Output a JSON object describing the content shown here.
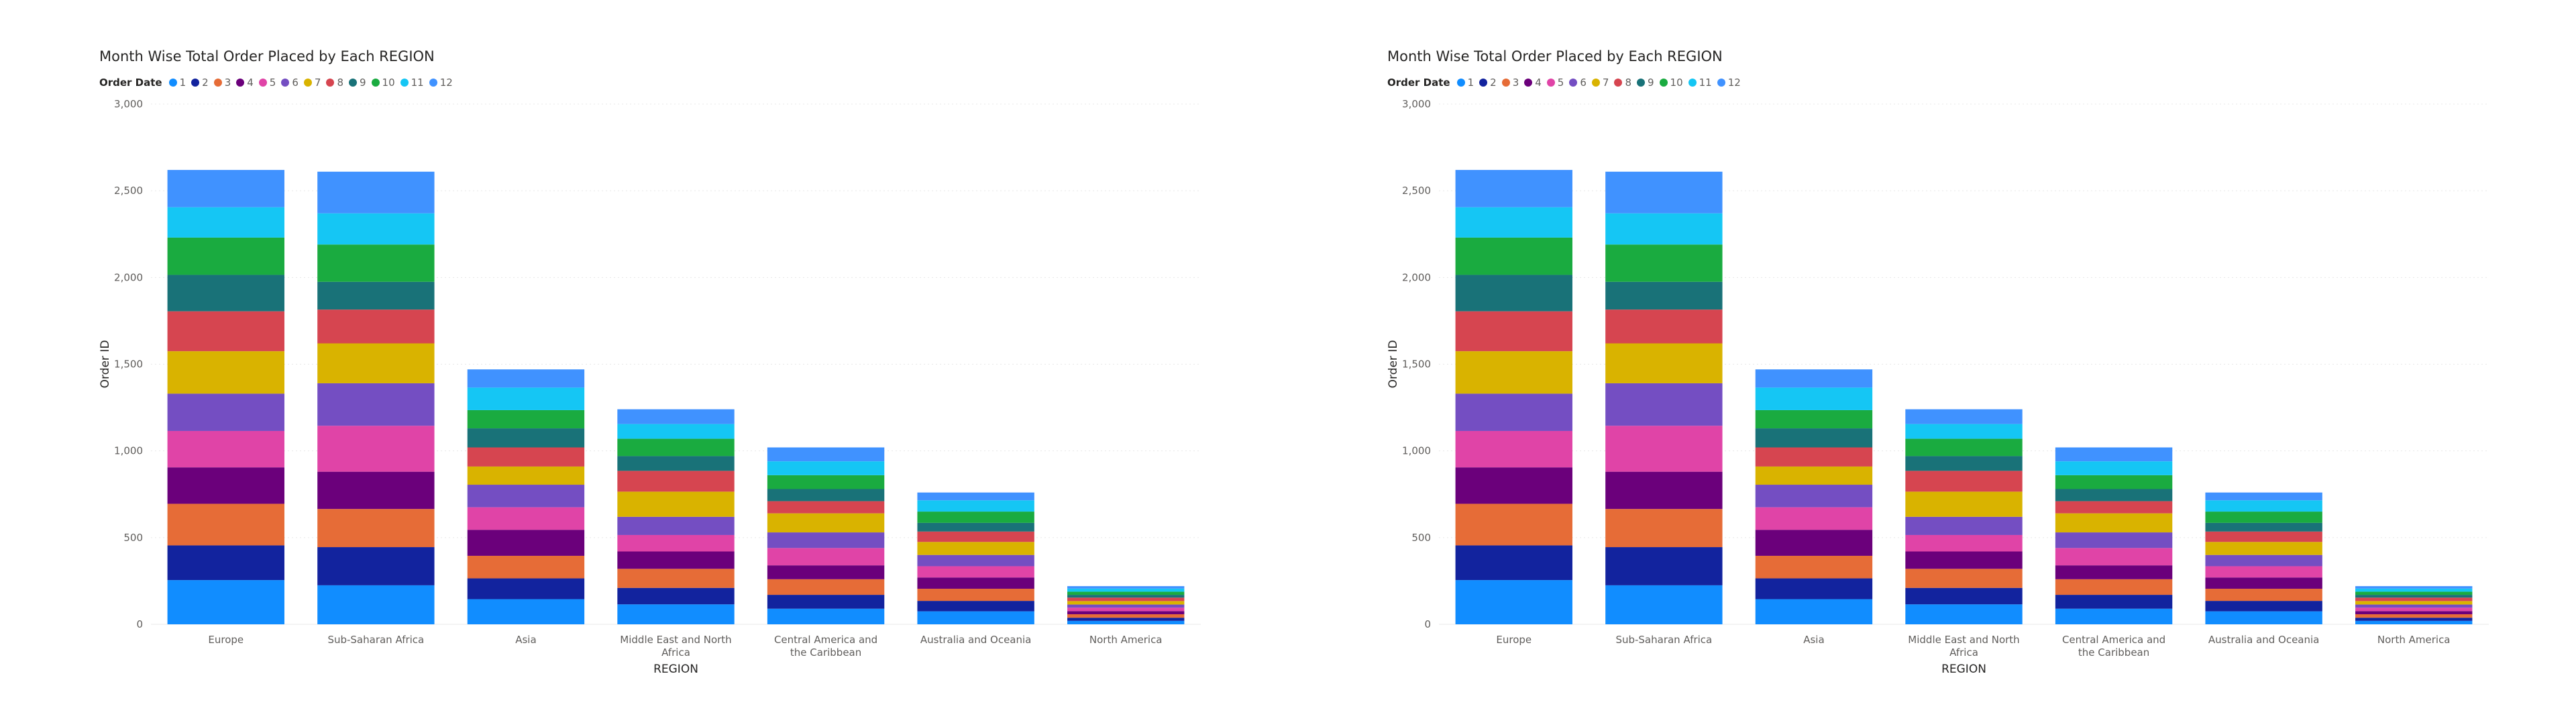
{
  "chart_data": [
    {
      "type": "bar",
      "stacked": true,
      "title": "Month Wise Total Order Placed by Each REGION",
      "xlabel": "REGION",
      "ylabel": "Order ID",
      "legend_title": "Order Date",
      "legend_position": "top-left",
      "grid": true,
      "ylim": [
        0,
        3000
      ],
      "yticks": [
        0,
        500,
        1000,
        1500,
        2000,
        2500,
        3000
      ],
      "ytick_labels": [
        "0",
        "500",
        "1,000",
        "1,500",
        "2,000",
        "2,500",
        "3,000"
      ],
      "categories": [
        "Europe",
        "Sub-Saharan Africa",
        "Asia",
        "Middle East and North Africa",
        "Central America and the Caribbean",
        "Australia and Oceania",
        "North America"
      ],
      "series": [
        {
          "name": "1",
          "color": "#118DFF",
          "values": [
            255,
            225,
            145,
            115,
            90,
            75,
            20
          ]
        },
        {
          "name": "2",
          "color": "#12239E",
          "values": [
            200,
            220,
            120,
            95,
            80,
            60,
            18
          ]
        },
        {
          "name": "3",
          "color": "#E66C37",
          "values": [
            240,
            220,
            130,
            110,
            90,
            70,
            20
          ]
        },
        {
          "name": "4",
          "color": "#6B007B",
          "values": [
            210,
            215,
            150,
            100,
            80,
            65,
            18
          ]
        },
        {
          "name": "5",
          "color": "#E044A7",
          "values": [
            210,
            265,
            130,
            95,
            100,
            65,
            20
          ]
        },
        {
          "name": "6",
          "color": "#744EC2",
          "values": [
            215,
            245,
            130,
            105,
            90,
            65,
            18
          ]
        },
        {
          "name": "7",
          "color": "#D9B300",
          "values": [
            245,
            230,
            105,
            145,
            110,
            75,
            20
          ]
        },
        {
          "name": "8",
          "color": "#D64550",
          "values": [
            230,
            195,
            110,
            120,
            70,
            60,
            20
          ]
        },
        {
          "name": "9",
          "color": "#197278",
          "values": [
            210,
            160,
            110,
            85,
            70,
            50,
            16
          ]
        },
        {
          "name": "10",
          "color": "#1AAB40",
          "values": [
            215,
            215,
            105,
            100,
            80,
            65,
            18
          ]
        },
        {
          "name": "11",
          "color": "#15C6F4",
          "values": [
            175,
            180,
            130,
            85,
            80,
            65,
            18
          ]
        },
        {
          "name": "12",
          "color": "#4092FF",
          "values": [
            215,
            240,
            105,
            85,
            80,
            45,
            14
          ]
        }
      ]
    },
    {
      "type": "bar",
      "stacked": true,
      "title": "Month Wise Total Order Placed by Each REGION",
      "xlabel": "REGION",
      "ylabel": "Order ID",
      "legend_title": "Order Date",
      "legend_position": "top-left",
      "grid": true,
      "ylim": [
        0,
        3000
      ],
      "yticks": [
        0,
        500,
        1000,
        1500,
        2000,
        2500,
        3000
      ],
      "ytick_labels": [
        "0",
        "500",
        "1,000",
        "1,500",
        "2,000",
        "2,500",
        "3,000"
      ],
      "categories": [
        "Europe",
        "Sub-Saharan Africa",
        "Asia",
        "Middle East and North Africa",
        "Central America and the Caribbean",
        "Australia and Oceania",
        "North America"
      ],
      "series": [
        {
          "name": "1",
          "color": "#118DFF",
          "values": [
            255,
            225,
            145,
            115,
            90,
            75,
            20
          ]
        },
        {
          "name": "2",
          "color": "#12239E",
          "values": [
            200,
            220,
            120,
            95,
            80,
            60,
            18
          ]
        },
        {
          "name": "3",
          "color": "#E66C37",
          "values": [
            240,
            220,
            130,
            110,
            90,
            70,
            20
          ]
        },
        {
          "name": "4",
          "color": "#6B007B",
          "values": [
            210,
            215,
            150,
            100,
            80,
            65,
            18
          ]
        },
        {
          "name": "5",
          "color": "#E044A7",
          "values": [
            210,
            265,
            130,
            95,
            100,
            65,
            20
          ]
        },
        {
          "name": "6",
          "color": "#744EC2",
          "values": [
            215,
            245,
            130,
            105,
            90,
            65,
            18
          ]
        },
        {
          "name": "7",
          "color": "#D9B300",
          "values": [
            245,
            230,
            105,
            145,
            110,
            75,
            20
          ]
        },
        {
          "name": "8",
          "color": "#D64550",
          "values": [
            230,
            195,
            110,
            120,
            70,
            60,
            20
          ]
        },
        {
          "name": "9",
          "color": "#197278",
          "values": [
            210,
            160,
            110,
            85,
            70,
            50,
            16
          ]
        },
        {
          "name": "10",
          "color": "#1AAB40",
          "values": [
            215,
            215,
            105,
            100,
            80,
            65,
            18
          ]
        },
        {
          "name": "11",
          "color": "#15C6F4",
          "values": [
            175,
            180,
            130,
            85,
            80,
            65,
            18
          ]
        },
        {
          "name": "12",
          "color": "#4092FF",
          "values": [
            215,
            240,
            105,
            85,
            80,
            45,
            14
          ]
        }
      ]
    }
  ]
}
